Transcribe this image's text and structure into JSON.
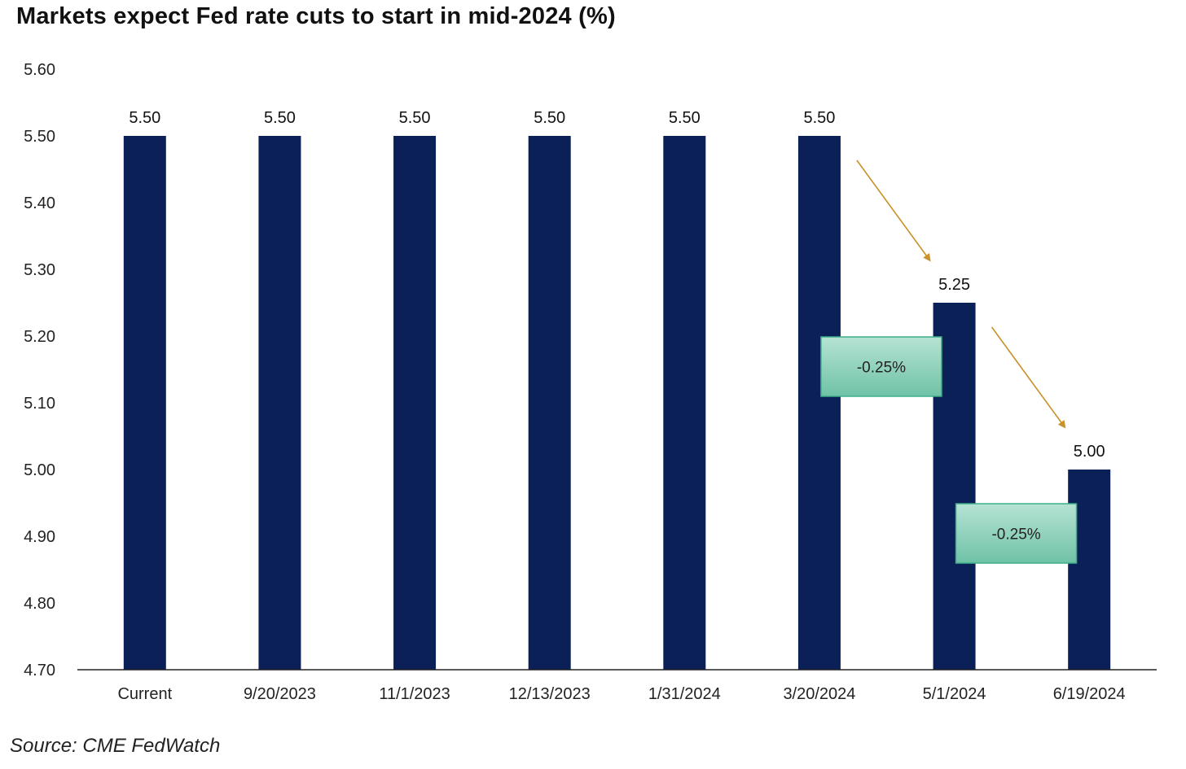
{
  "title": "Markets  expect Fed rate cuts to start  in  mid-2024 (%)",
  "source": "Source: CME FedWatch",
  "colors": {
    "bar": "#0b2057",
    "arrow": "#c8912a",
    "annotation_fill_top": "#b6e3d3",
    "annotation_fill_bottom": "#6fc2a7",
    "annotation_border": "#3fae8a",
    "axis": "#222222"
  },
  "chart_data": {
    "type": "bar",
    "title": "Markets  expect Fed rate cuts to start  in  mid-2024 (%)",
    "xlabel": "",
    "ylabel": "",
    "categories": [
      "Current",
      "9/20/2023",
      "11/1/2023",
      "12/13/2023",
      "1/31/2024",
      "3/20/2024",
      "5/1/2024",
      "6/19/2024"
    ],
    "values": [
      5.5,
      5.5,
      5.5,
      5.5,
      5.5,
      5.5,
      5.25,
      5.0
    ],
    "data_labels": [
      "5.50",
      "5.50",
      "5.50",
      "5.50",
      "5.50",
      "5.50",
      "5.25",
      "5.00"
    ],
    "ylim": [
      4.7,
      5.6
    ],
    "yticks": [
      "4.70",
      "4.80",
      "4.90",
      "5.00",
      "5.10",
      "5.20",
      "5.30",
      "5.40",
      "5.50",
      "5.60"
    ],
    "grid": false,
    "legend": "none",
    "annotations": [
      {
        "text": "-0.25%",
        "from_category": "3/20/2024",
        "to_category": "5/1/2024"
      },
      {
        "text": "-0.25%",
        "from_category": "5/1/2024",
        "to_category": "6/19/2024"
      }
    ]
  }
}
